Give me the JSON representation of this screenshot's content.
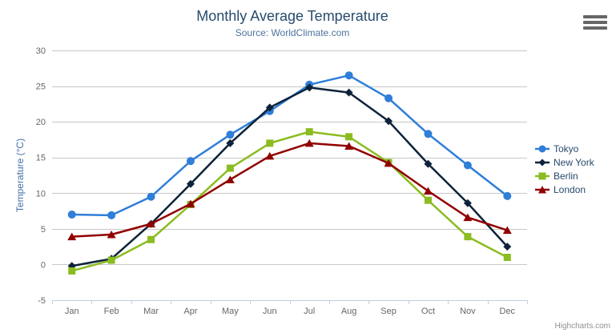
{
  "credits": {
    "text": "Highcharts.com"
  },
  "export_button": {
    "icon": "hamburger-menu-icon"
  },
  "colors": {
    "title": "#274b6d",
    "subtitle": "#4d759e",
    "yaxis_title": "#4572a7",
    "axis_label": "#666666",
    "grid_line": "#c8c8c8",
    "axis_line": "#c0d0e0",
    "legend_text": "#274b6d",
    "credits_text": "#909090"
  },
  "chart_data": {
    "type": "line",
    "title": "Monthly Average Temperature",
    "subtitle": "Source: WorldClimate.com",
    "xlabel": "",
    "ylabel": "Temperature (°C)",
    "ylim": [
      -5,
      30
    ],
    "ytick_step": 5,
    "grid": "horizontal",
    "legend_position": "right",
    "categories": [
      "Jan",
      "Feb",
      "Mar",
      "Apr",
      "May",
      "Jun",
      "Jul",
      "Aug",
      "Sep",
      "Oct",
      "Nov",
      "Dec"
    ],
    "series": [
      {
        "name": "Tokyo",
        "color": "#2f7ed8",
        "marker": "circle",
        "values": [
          7.0,
          6.9,
          9.5,
          14.5,
          18.2,
          21.5,
          25.2,
          26.5,
          23.3,
          18.3,
          13.9,
          9.6
        ]
      },
      {
        "name": "New York",
        "color": "#0d233a",
        "marker": "diamond",
        "values": [
          -0.2,
          0.8,
          5.7,
          11.3,
          17.0,
          22.0,
          24.8,
          24.1,
          20.1,
          14.1,
          8.6,
          2.5
        ]
      },
      {
        "name": "Berlin",
        "color": "#8bbc21",
        "marker": "square",
        "values": [
          -0.9,
          0.6,
          3.5,
          8.4,
          13.5,
          17.0,
          18.6,
          17.9,
          14.3,
          9.0,
          3.9,
          1.0
        ]
      },
      {
        "name": "London",
        "color": "#910000",
        "marker": "triangle",
        "values": [
          3.9,
          4.2,
          5.7,
          8.5,
          11.9,
          15.2,
          17.0,
          16.6,
          14.2,
          10.3,
          6.6,
          4.8
        ]
      }
    ]
  }
}
